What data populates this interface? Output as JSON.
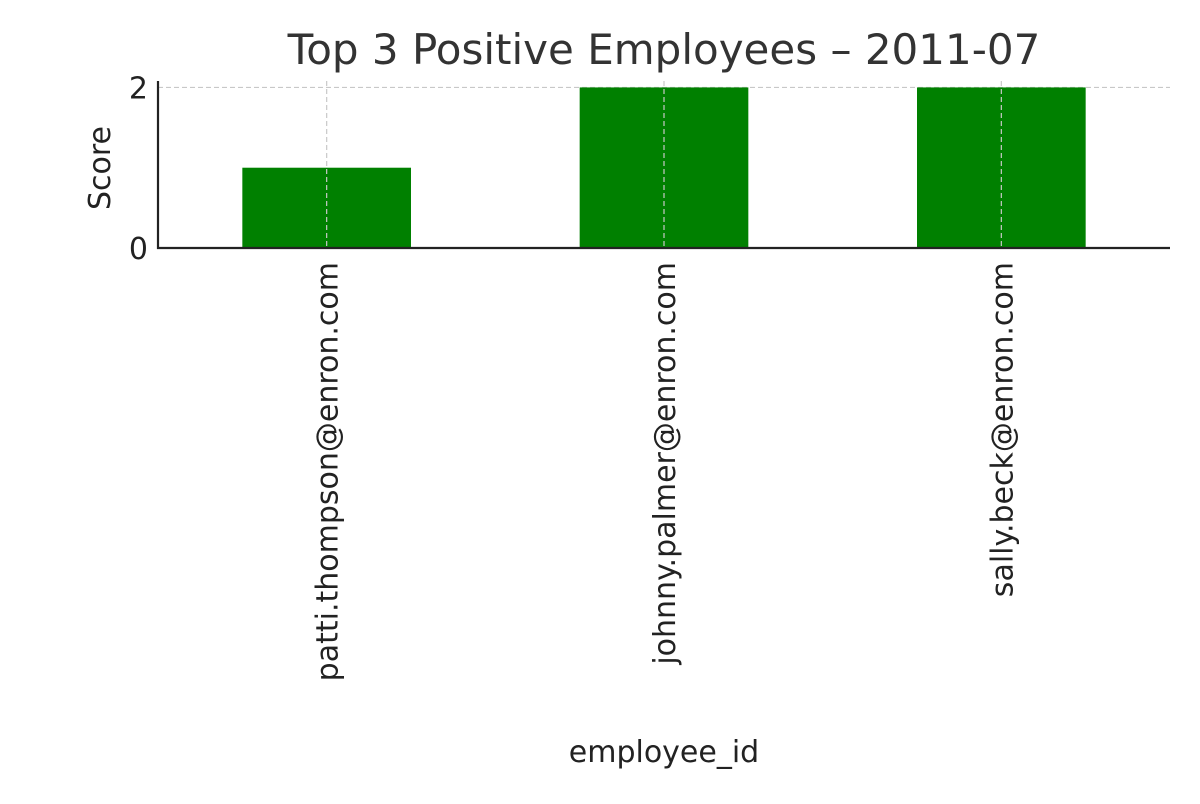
{
  "chart_data": {
    "type": "bar",
    "title": "Top 3 Positive Employees – 2011-07",
    "xlabel": "employee_id",
    "ylabel": "Score",
    "categories": [
      "patti.thompson@enron.com",
      "johnny.palmer@enron.com",
      "sally.beck@enron.com"
    ],
    "values": [
      1,
      2,
      2
    ],
    "ylim": [
      0,
      2.08
    ],
    "yticks": [
      0,
      2
    ],
    "grid": true,
    "legend": "none",
    "colors": {
      "bar": "#008000",
      "grid": "#c8c8c8",
      "axis": "#222222",
      "text": "#222222",
      "title": "#333333"
    }
  }
}
